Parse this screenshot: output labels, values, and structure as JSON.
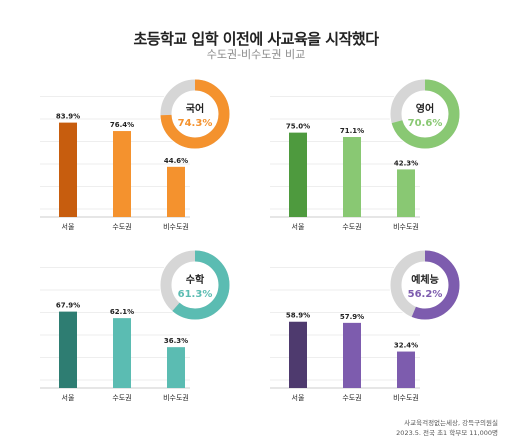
{
  "title": "초등학교 입학 이전에 사교육을 시작했다",
  "subtitle": "수도권-비수도권 비교",
  "footer": {
    "line1": "사교육걱정없는세상, 강득구의원실",
    "line2": "2023.5. 전국 초1 학부모 11,000명"
  },
  "chart_data": [
    {
      "type": "bar",
      "subject": "국어",
      "overall_label": "74.3%",
      "overall_value": 74.3,
      "categories": [
        "서울",
        "수도권",
        "비수도권"
      ],
      "values": [
        83.9,
        76.4,
        44.6
      ],
      "value_labels": [
        "83.9%",
        "76.4%",
        "44.6%"
      ],
      "colors": [
        "#c75d0e",
        "#f4922e",
        "#f4922e"
      ],
      "donut_color": "#f4922e",
      "ylim": [
        0,
        100
      ]
    },
    {
      "type": "bar",
      "subject": "영어",
      "overall_label": "70.6%",
      "overall_value": 70.6,
      "categories": [
        "서울",
        "수도권",
        "비수도권"
      ],
      "values": [
        75.0,
        71.1,
        42.3
      ],
      "value_labels": [
        "75.0%",
        "71.1%",
        "42.3%"
      ],
      "colors": [
        "#4e9a3e",
        "#89c873",
        "#89c873"
      ],
      "donut_color": "#89c873",
      "ylim": [
        0,
        100
      ]
    },
    {
      "type": "bar",
      "subject": "수학",
      "overall_label": "61.3%",
      "overall_value": 61.3,
      "categories": [
        "서울",
        "수도권",
        "비수도권"
      ],
      "values": [
        67.9,
        62.1,
        36.3
      ],
      "value_labels": [
        "67.9%",
        "62.1%",
        "36.3%"
      ],
      "colors": [
        "#2e7d72",
        "#5bbcb2",
        "#5bbcb2"
      ],
      "donut_color": "#5bbcb2",
      "ylim": [
        0,
        100
      ]
    },
    {
      "type": "bar",
      "subject": "예체능",
      "overall_label": "56.2%",
      "overall_value": 56.2,
      "categories": [
        "서울",
        "수도권",
        "비수도권"
      ],
      "values": [
        58.9,
        57.9,
        32.4
      ],
      "value_labels": [
        "58.9%",
        "57.9%",
        "32.4%"
      ],
      "colors": [
        "#4e3a6e",
        "#7d5cae",
        "#7d5cae"
      ],
      "donut_color": "#7d5cae",
      "ylim": [
        0,
        100
      ]
    }
  ]
}
